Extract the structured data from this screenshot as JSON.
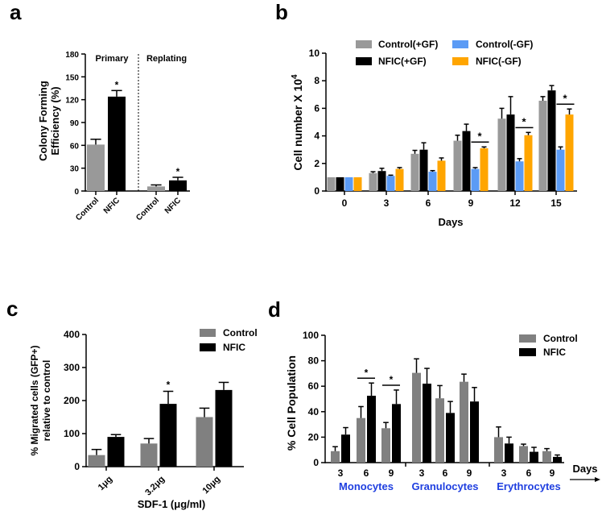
{
  "chart_data": [
    {
      "panel": "a",
      "type": "bar",
      "ylabel": [
        "Colony Forming",
        "Efficiency (%)"
      ],
      "ylim": [
        0,
        180
      ],
      "yticks": [
        0,
        30,
        60,
        90,
        120,
        150,
        180
      ],
      "groups": [
        "Primary",
        "Replating"
      ],
      "categories": [
        "Control",
        "NFIC",
        "Control",
        "NFIC"
      ],
      "values": [
        61,
        124,
        6,
        14
      ],
      "errors": [
        7,
        8,
        2,
        4
      ],
      "colors": [
        "#999999",
        "#000000",
        "#999999",
        "#000000"
      ],
      "significance": [
        {
          "index": 1,
          "mark": "*"
        },
        {
          "index": 3,
          "mark": "*"
        }
      ]
    },
    {
      "panel": "b",
      "type": "bar",
      "xlabel": "Days",
      "ylabel": "Cell number X 10",
      "ylabel_sup": "4",
      "ylim": [
        0,
        10
      ],
      "yticks": [
        0,
        2,
        4,
        6,
        8,
        10
      ],
      "categories": [
        "0",
        "3",
        "6",
        "9",
        "12",
        "15"
      ],
      "legend_position": "top",
      "series": [
        {
          "name": "Control(+GF)",
          "color": "#999999",
          "values": [
            1,
            1.3,
            2.7,
            3.65,
            5.25,
            6.55
          ],
          "errors": [
            0,
            0.1,
            0.25,
            0.4,
            0.75,
            0.3
          ]
        },
        {
          "name": "NFIC(+GF)",
          "color": "#000000",
          "values": [
            1,
            1.45,
            3.0,
            4.35,
            5.55,
            7.3
          ],
          "errors": [
            0,
            0.2,
            0.5,
            0.5,
            1.3,
            0.35
          ]
        },
        {
          "name": "Control(-GF)",
          "color": "#5b9bf5",
          "values": [
            1,
            1.1,
            1.4,
            1.6,
            2.15,
            3.0
          ],
          "errors": [
            0,
            0.05,
            0.08,
            0.1,
            0.2,
            0.2
          ]
        },
        {
          "name": "NFIC(-GF)",
          "color": "#ffa500",
          "values": [
            1,
            1.6,
            2.2,
            3.1,
            4.05,
            5.55
          ],
          "errors": [
            0,
            0.1,
            0.2,
            0.1,
            0.2,
            0.4
          ]
        }
      ],
      "significance": [
        {
          "category": 3,
          "series": [
            2,
            3
          ],
          "mark": "*"
        },
        {
          "category": 4,
          "series": [
            2,
            3
          ],
          "mark": "*"
        },
        {
          "category": 5,
          "series": [
            2,
            3
          ],
          "mark": "*"
        }
      ]
    },
    {
      "panel": "c",
      "type": "bar",
      "xlabel": "SDF-1 (μg/ml)",
      "ylabel": [
        "% Migrated cells (GFP+)",
        "relative to control"
      ],
      "ylim": [
        0,
        400
      ],
      "yticks": [
        0,
        100,
        200,
        300,
        400
      ],
      "categories": [
        "1μg",
        "3.2μg",
        "10μg"
      ],
      "legend_position": "top-right",
      "series": [
        {
          "name": "Control",
          "color": "#808080",
          "values": [
            35,
            70,
            150
          ],
          "errors": [
            17,
            15,
            27
          ]
        },
        {
          "name": "NFIC",
          "color": "#000000",
          "values": [
            90,
            190,
            232
          ],
          "errors": [
            7,
            38,
            23
          ]
        }
      ],
      "significance": [
        {
          "category": 1,
          "series": [
            1
          ],
          "mark": "*"
        }
      ]
    },
    {
      "panel": "d",
      "type": "bar",
      "xlabel": "Days",
      "ylabel": "% Cell Population",
      "ylim": [
        0,
        100
      ],
      "yticks": [
        0,
        20,
        40,
        60,
        80,
        100
      ],
      "groups": [
        "Monocytes",
        "Granulocytes",
        "Erythrocytes"
      ],
      "group_color": "#1f3fe0",
      "categories": [
        "3",
        "6",
        "9",
        "3",
        "6",
        "9",
        "3",
        "6",
        "9"
      ],
      "legend_position": "top-right",
      "series": [
        {
          "name": "Control",
          "color": "#808080",
          "values": [
            9,
            35,
            27,
            70.5,
            50.5,
            63.5,
            20,
            13,
            9
          ],
          "errors": [
            3.5,
            9,
            4.5,
            11,
            10,
            6,
            8,
            1.5,
            2
          ]
        },
        {
          "name": "NFIC",
          "color": "#000000",
          "values": [
            22,
            52.5,
            46,
            62,
            39,
            48,
            15,
            8.5,
            4.5
          ],
          "errors": [
            5.5,
            10,
            11,
            12,
            9,
            11,
            5,
            3.5,
            1.5
          ]
        }
      ],
      "significance": [
        {
          "category": 1,
          "series": [
            0,
            1
          ],
          "mark": "*"
        },
        {
          "category": 2,
          "series": [
            0,
            1
          ],
          "mark": "*"
        }
      ]
    }
  ],
  "panel_labels": [
    "a",
    "b",
    "c",
    "d"
  ]
}
